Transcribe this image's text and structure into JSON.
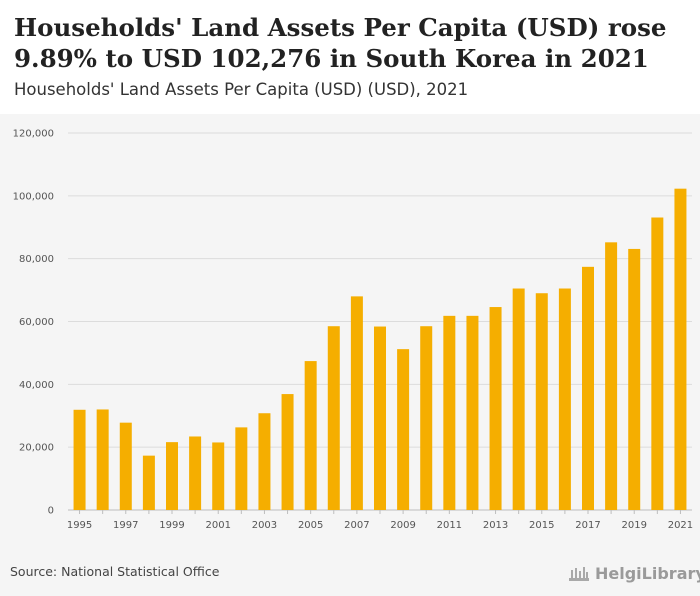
{
  "header": {
    "title": "Households' Land Assets Per Capita (USD) rose 9.89% to USD 102,276 in South Korea in 2021",
    "subtitle": "Households' Land Assets Per Capita (USD) (USD), 2021"
  },
  "footer": {
    "source": "Source: National Statistical Office",
    "logo_text": "HelgiLibrary"
  },
  "colors": {
    "bar": "#f5ae00",
    "grid": "#dcdcdc",
    "axis_text": "#555555",
    "plot_bg": "#f5f5f5"
  },
  "chart_data": {
    "type": "bar",
    "title": "Households' Land Assets Per Capita (USD) rose 9.89% to USD 102,276 in South Korea in 2021",
    "subtitle": "Households' Land Assets Per Capita (USD) (USD), 2021",
    "xlabel": "",
    "ylabel": "",
    "ylim": [
      0,
      120000
    ],
    "yticks": [
      0,
      20000,
      40000,
      60000,
      80000,
      100000,
      120000
    ],
    "ytick_labels": [
      "0",
      "20,000",
      "40,000",
      "60,000",
      "80,000",
      "100,000",
      "120,000"
    ],
    "grid": true,
    "categories": [
      "1995",
      "1996",
      "1997",
      "1998",
      "1999",
      "2000",
      "2001",
      "2002",
      "2003",
      "2004",
      "2005",
      "2006",
      "2007",
      "2008",
      "2009",
      "2010",
      "2011",
      "2012",
      "2013",
      "2014",
      "2015",
      "2016",
      "2017",
      "2018",
      "2019",
      "2020",
      "2021"
    ],
    "xtick_labels": [
      "1995",
      "1997",
      "1999",
      "2001",
      "2003",
      "2005",
      "2007",
      "2009",
      "2011",
      "2013",
      "2015",
      "2017",
      "2019",
      "2021"
    ],
    "values": [
      31900,
      32000,
      27800,
      17300,
      21600,
      23400,
      21500,
      26300,
      30800,
      36900,
      47400,
      58500,
      68000,
      58400,
      51200,
      58500,
      61800,
      61800,
      64600,
      70500,
      69000,
      70500,
      77400,
      85200,
      83100,
      93100,
      102276
    ]
  }
}
